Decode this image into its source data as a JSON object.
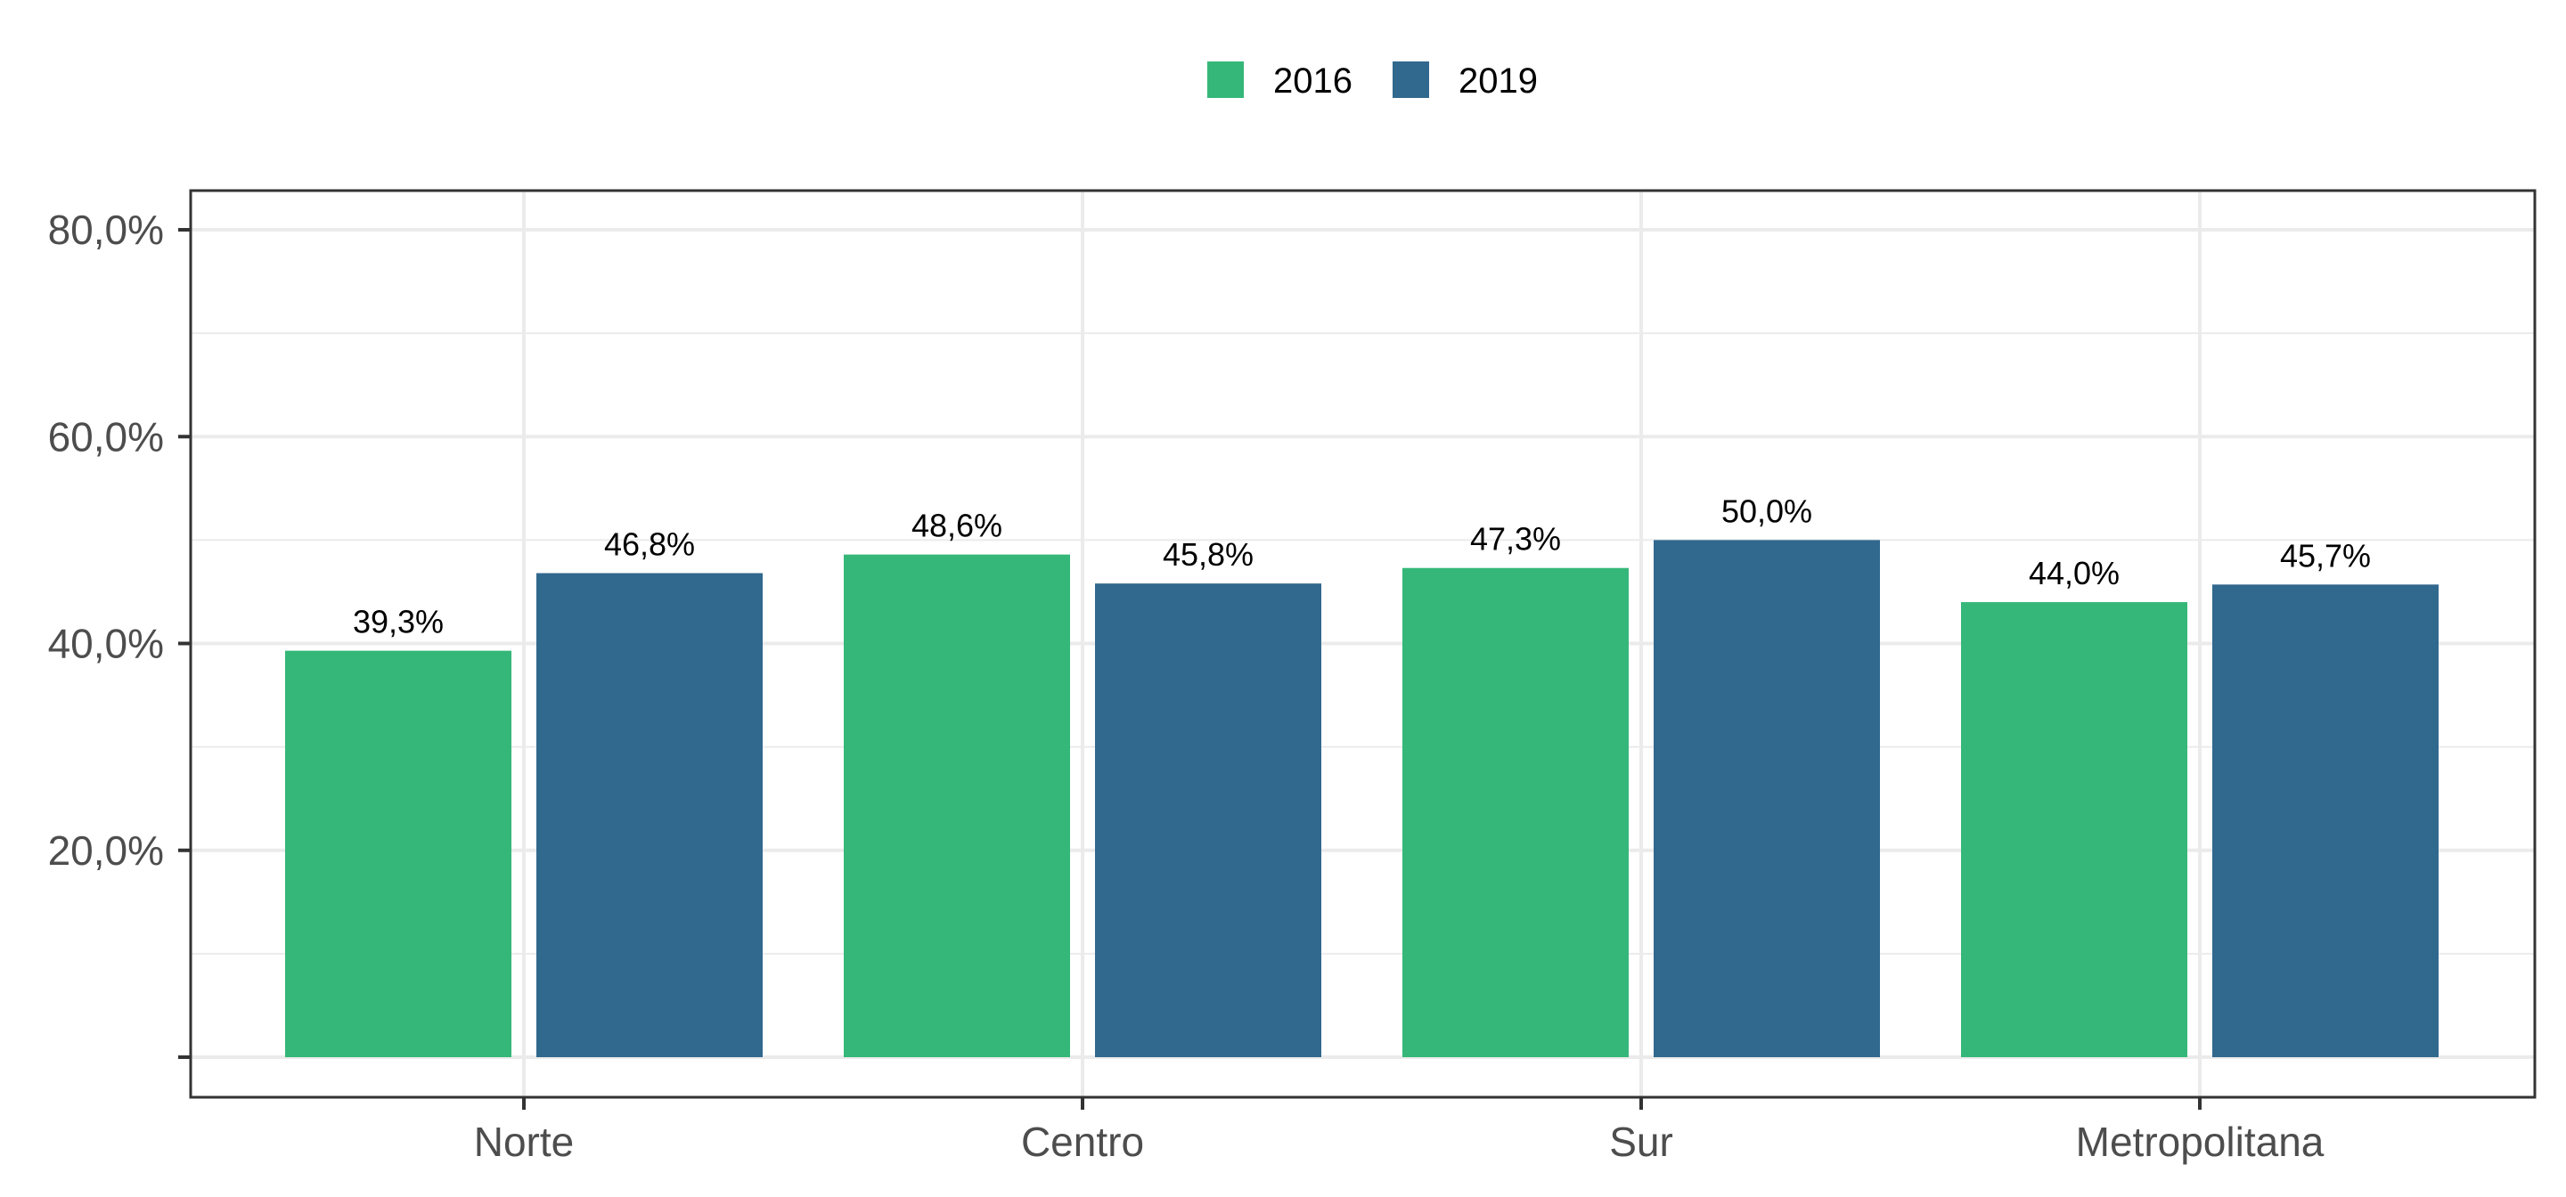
{
  "chart_data": {
    "type": "bar",
    "title": "",
    "xlabel": "",
    "ylabel": "",
    "categories": [
      "Norte",
      "Centro",
      "Sur",
      "Metropolitana"
    ],
    "series": [
      {
        "name": "2016",
        "color": "#35B779",
        "values": [
          39.3,
          48.6,
          47.3,
          44.0
        ],
        "labels": [
          "39,3%",
          "48,6%",
          "47,3%",
          "44,0%"
        ]
      },
      {
        "name": "2019",
        "color": "#31688E",
        "values": [
          46.8,
          45.8,
          50.0,
          45.7
        ],
        "labels": [
          "46,8%",
          "45,8%",
          "50,0%",
          "45,7%"
        ]
      }
    ],
    "ylim": [
      0,
      80
    ],
    "yticks": [
      0,
      20,
      40,
      60,
      80
    ],
    "ytick_labels": [
      "",
      "20,0%",
      "40,0%",
      "60,0%",
      "80,0%"
    ],
    "grid": true,
    "legend_position": "top"
  }
}
